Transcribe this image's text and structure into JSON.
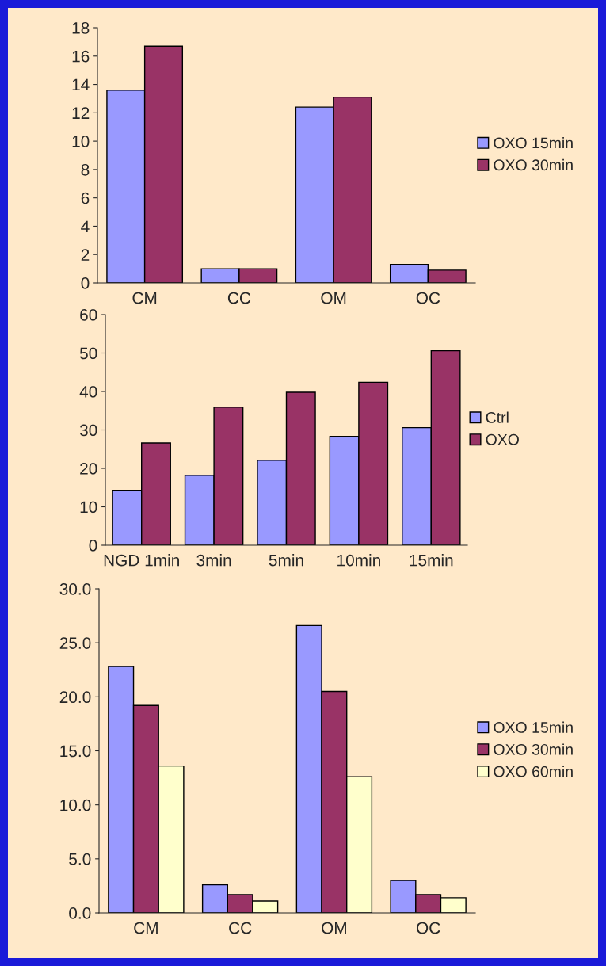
{
  "chart_data": [
    {
      "type": "bar",
      "categories": [
        "CM",
        "CC",
        "OM",
        "OC"
      ],
      "series": [
        {
          "name": "OXO 15min",
          "color": "#9999ff",
          "values": [
            13.6,
            1.0,
            12.4,
            1.3
          ]
        },
        {
          "name": "OXO 30min",
          "color": "#993366",
          "values": [
            16.7,
            1.0,
            13.1,
            0.9
          ]
        }
      ],
      "ylim": [
        0,
        18
      ],
      "yticks": [
        0,
        2,
        4,
        6,
        8,
        10,
        12,
        14,
        16,
        18
      ],
      "grid": false,
      "legend": "right"
    },
    {
      "type": "bar",
      "categories": [
        "NGD 1min",
        "3min",
        "5min",
        "10min",
        "15min"
      ],
      "series": [
        {
          "name": "Ctrl",
          "color": "#9999ff",
          "values": [
            14.3,
            18.2,
            22.1,
            28.3,
            30.6
          ]
        },
        {
          "name": "OXO",
          "color": "#993366",
          "values": [
            26.6,
            35.9,
            39.8,
            42.4,
            50.6
          ]
        }
      ],
      "ylim": [
        0,
        60
      ],
      "yticks": [
        0,
        10,
        20,
        30,
        40,
        50,
        60
      ],
      "grid": false,
      "legend": "right"
    },
    {
      "type": "bar",
      "categories": [
        "CM",
        "CC",
        "OM",
        "OC"
      ],
      "series": [
        {
          "name": "OXO 15min",
          "color": "#9999ff",
          "values": [
            22.8,
            2.6,
            26.6,
            3.0
          ]
        },
        {
          "name": "OXO 30min",
          "color": "#993366",
          "values": [
            19.2,
            1.7,
            20.5,
            1.7
          ]
        },
        {
          "name": "OXO 60min",
          "color": "#ffffcc",
          "values": [
            13.6,
            1.1,
            12.6,
            1.4
          ]
        }
      ],
      "ylim": [
        0,
        30
      ],
      "yticks": [
        {
          "value": 0,
          "label": "0.0"
        },
        {
          "value": 5,
          "label": "5.0"
        },
        {
          "value": 10,
          "label": "10.0"
        },
        {
          "value": 15,
          "label": "15.0"
        },
        {
          "value": 20,
          "label": "20.0"
        },
        {
          "value": 25,
          "label": "25.0"
        },
        {
          "value": 30,
          "label": "30.0"
        }
      ],
      "grid": false,
      "legend": "right"
    }
  ]
}
